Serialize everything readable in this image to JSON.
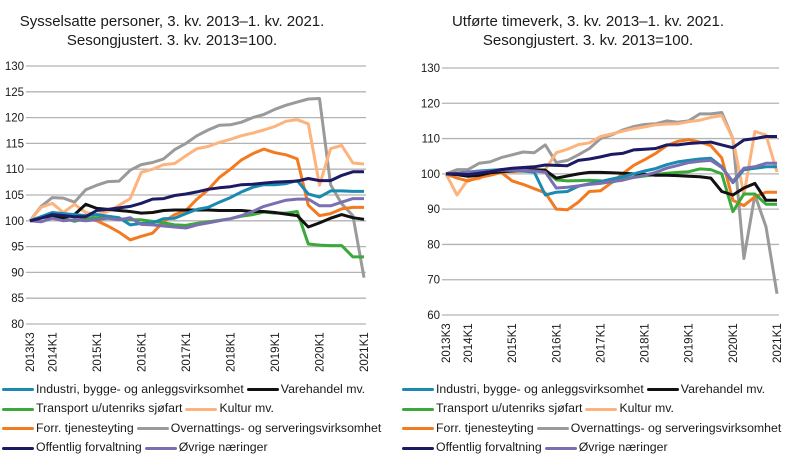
{
  "chart_data": [
    {
      "type": "line",
      "title": "Sysselsatte personer, 3. kv. 2013–1. kv. 2021.",
      "subtitle": "Sesongjustert. 3. kv. 2013=100.",
      "xlabel": "",
      "ylabel": "",
      "ylim": [
        80,
        130
      ],
      "yticks": [
        80,
        85,
        90,
        95,
        100,
        105,
        110,
        115,
        120,
        125,
        130
      ],
      "ytick_labels": [
        "80",
        "85",
        "90",
        "95",
        "100",
        "105",
        "110",
        "115",
        "120",
        "125",
        "130"
      ],
      "grid": true,
      "x": [
        "2013K3",
        "2013K4",
        "2014K1",
        "2014K2",
        "2014K3",
        "2014K4",
        "2015K1",
        "2015K2",
        "2015K3",
        "2015K4",
        "2016K1",
        "2016K2",
        "2016K3",
        "2016K4",
        "2017K1",
        "2017K2",
        "2017K3",
        "2017K4",
        "2018K1",
        "2018K2",
        "2018K3",
        "2018K4",
        "2019K1",
        "2019K2",
        "2019K3",
        "2019K4",
        "2020K1",
        "2020K2",
        "2020K3",
        "2020K4",
        "2021K1"
      ],
      "xtick_labels": [
        "2013K3",
        "2014K1",
        "2015K1",
        "2016K1",
        "2017K1",
        "2018K1",
        "2019K1",
        "2020K1",
        "2021K1"
      ],
      "legend": "bottom",
      "series": [
        {
          "name": "Industri, bygge- og anleggsvirksomhet",
          "color": "#1a8ab0",
          "values": [
            100,
            100.8,
            101.6,
            101.4,
            101.2,
            101.0,
            101.2,
            100.9,
            100.6,
            99.2,
            99.5,
            99.6,
            100.4,
            100.5,
            101.4,
            102.2,
            102.6,
            103.6,
            104.5,
            105.6,
            106.5,
            107.0,
            107.0,
            107.2,
            107.8,
            105.2,
            104.6,
            105.8,
            105.8,
            105.7,
            105.7
          ]
        },
        {
          "name": "Varehandel mv.",
          "color": "#111111",
          "values": [
            100,
            100.6,
            100.9,
            100.6,
            101.2,
            103.2,
            102.4,
            102.2,
            102.0,
            101.8,
            101.5,
            101.6,
            102.0,
            102.1,
            102.1,
            102.1,
            102.1,
            102.0,
            102.0,
            102.0,
            101.8,
            101.8,
            101.6,
            101.3,
            101.0,
            98.8,
            99.6,
            100.5,
            101.2,
            100.6,
            100.3
          ]
        },
        {
          "name": "Transport u/utenriks sjøfart",
          "color": "#3aa83a",
          "values": [
            100,
            100.7,
            101.2,
            100.5,
            99.9,
            100.4,
            100.6,
            100.5,
            100.4,
            100.2,
            100.2,
            99.9,
            99.6,
            99.2,
            99.1,
            99.5,
            99.8,
            100.1,
            100.4,
            100.9,
            101.2,
            101.7,
            101.5,
            101.5,
            101.8,
            95.5,
            95.3,
            95.2,
            95.2,
            93.0,
            93.0
          ]
        },
        {
          "name": "Kultur mv.",
          "color": "#fdb37e",
          "values": [
            100,
            102.6,
            103.4,
            101.6,
            103.2,
            101.6,
            101.2,
            101.8,
            103.0,
            104.3,
            109.4,
            110.0,
            110.9,
            111.1,
            112.6,
            114.0,
            114.4,
            115.2,
            115.8,
            116.5,
            117.0,
            117.6,
            118.3,
            119.3,
            119.6,
            118.8,
            106.9,
            114.0,
            114.6,
            111.2,
            111.0
          ]
        },
        {
          "name": "Forr. tjenesteyting",
          "color": "#f47a20",
          "values": [
            100,
            100.6,
            101.4,
            101.4,
            101.0,
            100.4,
            100.0,
            99.0,
            97.8,
            96.3,
            97.0,
            97.6,
            99.8,
            101.2,
            102.0,
            104.2,
            106.0,
            108.4,
            110.0,
            111.8,
            113.0,
            113.9,
            113.2,
            112.8,
            112.0,
            103.0,
            101.0,
            101.4,
            102.3,
            102.6,
            102.6
          ]
        },
        {
          "name": "Overnattings- og serveringsvirksomhet",
          "color": "#9a9a9a",
          "values": [
            100,
            102.8,
            104.5,
            104.4,
            103.6,
            106.0,
            106.9,
            107.6,
            107.7,
            109.8,
            110.9,
            111.3,
            112.0,
            113.8,
            115.0,
            116.5,
            117.6,
            118.5,
            118.6,
            119.1,
            120.0,
            120.6,
            121.6,
            122.4,
            123.0,
            123.6,
            123.7,
            107.0,
            103.3,
            101.0,
            89.0
          ]
        },
        {
          "name": "Offentlig forvaltning",
          "color": "#1b1a63",
          "values": [
            100,
            100.5,
            101.2,
            101.0,
            100.8,
            100.8,
            102.0,
            102.2,
            102.5,
            102.8,
            103.4,
            104.2,
            104.3,
            104.9,
            105.2,
            105.6,
            106.1,
            106.4,
            106.6,
            107.0,
            107.1,
            107.3,
            107.5,
            107.6,
            107.7,
            108.2,
            107.8,
            107.8,
            108.8,
            109.5,
            109.5
          ]
        },
        {
          "name": "Øvrige næringer",
          "color": "#7a6fb0",
          "values": [
            100,
            99.8,
            100.5,
            100.0,
            100.2,
            100.0,
            100.2,
            100.5,
            100.2,
            100.6,
            99.3,
            99.2,
            99.0,
            98.8,
            98.6,
            99.2,
            99.6,
            100.0,
            100.4,
            101.0,
            101.8,
            102.8,
            103.4,
            104.0,
            104.2,
            104.2,
            102.9,
            102.9,
            103.6,
            104.3,
            104.3
          ]
        }
      ]
    },
    {
      "type": "line",
      "title": "Utførte timeverk, 3. kv. 2013–1. kv. 2021.",
      "subtitle": "Sesongjustert. 3. kv. 2013=100.",
      "xlabel": "",
      "ylabel": "",
      "ylim": [
        60,
        130
      ],
      "yticks": [
        60,
        70,
        80,
        90,
        100,
        110,
        120,
        130
      ],
      "ytick_labels": [
        "60",
        "70",
        "80",
        "90",
        "100",
        "110",
        "120",
        "130"
      ],
      "grid": true,
      "x": [
        "2013K3",
        "2013K4",
        "2014K1",
        "2014K2",
        "2014K3",
        "2014K4",
        "2015K1",
        "2015K2",
        "2015K3",
        "2015K4",
        "2016K1",
        "2016K2",
        "2016K3",
        "2016K4",
        "2017K1",
        "2017K2",
        "2017K3",
        "2017K4",
        "2018K1",
        "2018K2",
        "2018K3",
        "2018K4",
        "2019K1",
        "2019K2",
        "2019K3",
        "2019K4",
        "2020K1",
        "2020K2",
        "2020K3",
        "2020K4",
        "2021K1"
      ],
      "xtick_labels": [
        "2013K3",
        "2014K1",
        "2015K1",
        "2016K1",
        "2017K1",
        "2018K1",
        "2019K1",
        "2020K1",
        "2021K1"
      ],
      "legend": "bottom",
      "series": [
        {
          "name": "Industri, bygge- og anleggsvirksomhet",
          "color": "#1a8ab0",
          "values": [
            100,
            100.2,
            100.5,
            100.8,
            101.0,
            101.2,
            101.0,
            100.8,
            100.5,
            94.0,
            94.8,
            95.0,
            96.5,
            97.2,
            97.8,
            98.5,
            99.2,
            100.0,
            100.8,
            101.5,
            102.6,
            103.4,
            103.8,
            104.2,
            104.4,
            102.0,
            97.5,
            101.2,
            101.6,
            102.0,
            102.0
          ]
        },
        {
          "name": "Varehandel mv.",
          "color": "#111111",
          "values": [
            100,
            99.8,
            99.3,
            99.6,
            100.3,
            100.6,
            100.8,
            101.0,
            101.2,
            101.0,
            98.8,
            99.4,
            100.0,
            100.4,
            100.4,
            100.3,
            100.2,
            100.0,
            99.9,
            99.6,
            99.6,
            99.5,
            99.3,
            99.2,
            98.8,
            95.0,
            94.0,
            96.0,
            97.3,
            92.5,
            92.5
          ]
        },
        {
          "name": "Transport u/utenriks sjøfart",
          "color": "#3aa83a",
          "values": [
            100,
            100.2,
            100.4,
            100.4,
            100.6,
            100.8,
            100.9,
            101.0,
            101.0,
            101.1,
            98.3,
            98.0,
            98.1,
            98.2,
            98.0,
            97.6,
            98.5,
            99.0,
            99.4,
            99.8,
            100.2,
            100.4,
            100.6,
            101.4,
            101.2,
            100.0,
            89.3,
            94.3,
            94.3,
            91.4,
            91.4
          ]
        },
        {
          "name": "Kultur mv.",
          "color": "#fdb37e",
          "values": [
            100,
            94.0,
            98.4,
            98.6,
            100.5,
            101.0,
            100.4,
            100.7,
            100.9,
            101.2,
            106.0,
            107.0,
            108.3,
            108.8,
            110.6,
            111.3,
            112.1,
            112.8,
            113.3,
            113.9,
            114.1,
            114.2,
            114.8,
            115.2,
            116.0,
            116.5,
            110.0,
            94.0,
            112.0,
            111.0,
            100.5
          ]
        },
        {
          "name": "Forr. tjenesteyting",
          "color": "#f47a20",
          "values": [
            100,
            98.8,
            98.0,
            99.0,
            99.6,
            100.4,
            98.0,
            97.0,
            95.8,
            94.6,
            90.0,
            89.8,
            92.0,
            95.0,
            95.2,
            97.5,
            100.0,
            102.4,
            104.0,
            105.8,
            108.0,
            109.2,
            109.7,
            109.0,
            108.0,
            104.5,
            92.5,
            91.0,
            93.5,
            94.8,
            94.8
          ]
        },
        {
          "name": "Overnattings- og serveringsvirksomhet",
          "color": "#9a9a9a",
          "values": [
            100,
            101.2,
            101.2,
            103.0,
            103.4,
            104.6,
            105.4,
            106.2,
            106.0,
            108.2,
            103.2,
            103.8,
            105.4,
            107.2,
            110.0,
            111.0,
            112.4,
            113.4,
            114.0,
            114.2,
            115.0,
            114.6,
            115.0,
            117.0,
            117.0,
            117.4,
            110.0,
            76.0,
            94.0,
            85.0,
            66.0
          ]
        },
        {
          "name": "Offentlig forvaltning",
          "color": "#1b1a63",
          "values": [
            100,
            100.0,
            99.8,
            100.2,
            100.6,
            101.2,
            101.6,
            101.8,
            102.0,
            102.5,
            102.4,
            102.3,
            103.8,
            104.2,
            104.8,
            105.5,
            105.8,
            106.8,
            107.0,
            107.2,
            108.2,
            108.2,
            108.6,
            108.8,
            109.0,
            108.2,
            107.4,
            109.6,
            110.0,
            110.6,
            110.6
          ]
        },
        {
          "name": "Øvrige næringer",
          "color": "#7a6fb0",
          "values": [
            100,
            100.2,
            100.4,
            100.6,
            100.8,
            101.0,
            101.0,
            101.0,
            100.8,
            100.5,
            96.0,
            96.2,
            96.6,
            97.0,
            97.3,
            97.8,
            98.2,
            99.0,
            99.6,
            100.4,
            101.6,
            102.4,
            103.2,
            103.6,
            103.8,
            101.8,
            97.8,
            101.6,
            102.0,
            103.0,
            103.0
          ]
        }
      ]
    }
  ]
}
